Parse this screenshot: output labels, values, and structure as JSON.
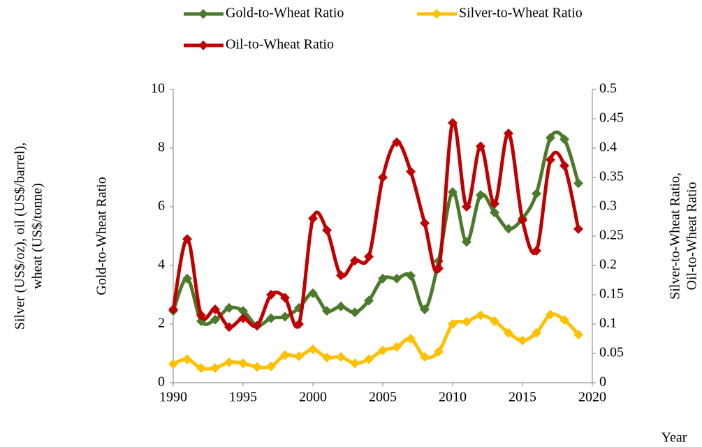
{
  "chart_data": {
    "type": "line",
    "y_label": "Gold-to-Wheat Ratio",
    "y_label_outer": [
      "Silver (US$/oz), oil (US$/barrel),",
      "wheat (US$/tonne)"
    ],
    "y2_label": [
      "Silver-to-Wheat Ratio,",
      "Oil-to-Wheat Ratio"
    ],
    "x_label": "Year",
    "x": [
      1990,
      1991,
      1992,
      1993,
      1994,
      1995,
      1996,
      1997,
      1998,
      1999,
      2000,
      2001,
      2002,
      2003,
      2004,
      2005,
      2006,
      2007,
      2008,
      2009,
      2010,
      2011,
      2012,
      2013,
      2014,
      2015,
      2016,
      2017,
      2018,
      2019
    ],
    "xlim": [
      1990,
      2020
    ],
    "xticks": [
      1990,
      1995,
      2000,
      2005,
      2010,
      2015,
      2020
    ],
    "ylim": [
      0,
      10
    ],
    "yticks": [
      0,
      2,
      4,
      6,
      8,
      10
    ],
    "y2lim": [
      0,
      0.5
    ],
    "y2ticks": [
      0,
      0.05,
      0.1,
      0.15,
      0.2,
      0.25,
      0.3,
      0.35,
      0.4,
      0.45,
      0.5
    ],
    "series": [
      {
        "name": "Gold-to-Wheat Ratio",
        "color": "#4a7a2a",
        "axis": "y",
        "values": [
          2.45,
          3.55,
          2.1,
          2.15,
          2.55,
          2.45,
          1.95,
          2.2,
          2.25,
          2.55,
          3.05,
          2.45,
          2.6,
          2.4,
          2.8,
          3.55,
          3.55,
          3.65,
          2.5,
          4.15,
          6.5,
          4.8,
          6.4,
          5.8,
          5.25,
          5.6,
          6.45,
          8.35,
          8.3,
          6.8
        ]
      },
      {
        "name": "Silver-to-Wheat Ratio",
        "color": "#ffc000",
        "axis": "y2",
        "values": [
          0.032,
          0.04,
          0.025,
          0.025,
          0.035,
          0.033,
          0.027,
          0.028,
          0.047,
          0.045,
          0.057,
          0.043,
          0.044,
          0.033,
          0.04,
          0.055,
          0.061,
          0.075,
          0.044,
          0.053,
          0.1,
          0.104,
          0.115,
          0.105,
          0.085,
          0.072,
          0.085,
          0.116,
          0.107,
          0.082
        ]
      },
      {
        "name": "Oil-to-Wheat Ratio",
        "color": "#c00000",
        "axis": "y2",
        "values": [
          0.125,
          0.245,
          0.115,
          0.125,
          0.095,
          0.11,
          0.097,
          0.15,
          0.145,
          0.1,
          0.28,
          0.26,
          0.183,
          0.208,
          0.215,
          0.35,
          0.41,
          0.36,
          0.272,
          0.195,
          0.443,
          0.3,
          0.403,
          0.305,
          0.425,
          0.277,
          0.225,
          0.38,
          0.37,
          0.262
        ]
      }
    ]
  }
}
